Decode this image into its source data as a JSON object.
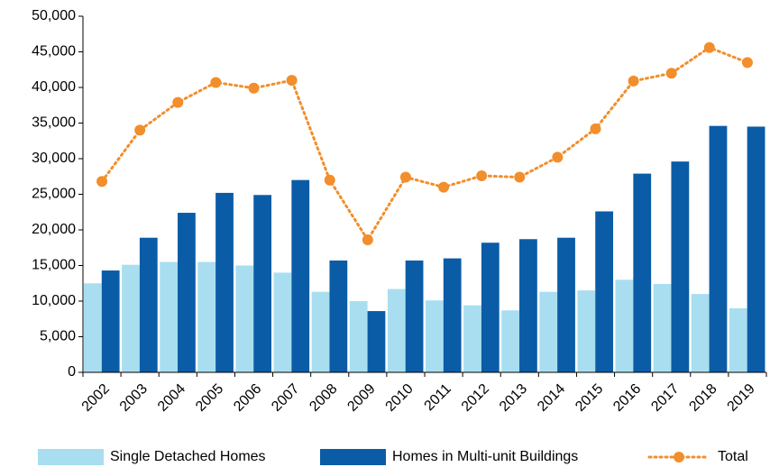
{
  "chart_data": {
    "type": "bar",
    "categories": [
      "2002",
      "2003",
      "2004",
      "2005",
      "2006",
      "2007",
      "2008",
      "2009",
      "2010",
      "2011",
      "2012",
      "2013",
      "2014",
      "2015",
      "2016",
      "2017",
      "2018",
      "2019"
    ],
    "series": [
      {
        "name": "Single Detached Homes",
        "color": "#a8def0",
        "values": [
          12500,
          15100,
          15500,
          15500,
          15000,
          14000,
          11300,
          10000,
          11700,
          10100,
          9400,
          8700,
          11300,
          11500,
          13000,
          12400,
          11000,
          9000
        ]
      },
      {
        "name": "Homes in Multi-unit Buildings",
        "color": "#0b5ca6",
        "values": [
          14300,
          18900,
          22400,
          25200,
          24900,
          27000,
          15700,
          8600,
          15700,
          16000,
          18200,
          18700,
          18900,
          22600,
          27900,
          29600,
          34600,
          34500
        ]
      },
      {
        "name": "Total",
        "type": "line",
        "color": "#f28e2b",
        "values": [
          26800,
          34000,
          37900,
          40700,
          39900,
          41000,
          27000,
          18600,
          27400,
          26000,
          27600,
          27400,
          30200,
          34200,
          40900,
          42000,
          45600,
          43500
        ]
      }
    ],
    "ylim": [
      0,
      50000
    ],
    "yticks": [
      0,
      {
        "value": 5000,
        "label": "5,000"
      },
      {
        "value": 10000,
        "label": "10,000"
      },
      {
        "value": 15000,
        "label": "15,000"
      },
      {
        "value": 20000,
        "label": "20,000"
      },
      {
        "value": 25000,
        "label": "25,000"
      },
      {
        "value": 30000,
        "label": "30,000"
      },
      {
        "value": 35000,
        "label": "35,000"
      },
      {
        "value": 40000,
        "label": "40,000"
      },
      {
        "value": 45000,
        "label": "45,000"
      },
      {
        "value": 50000,
        "label": "50,000"
      }
    ],
    "grid": false,
    "legend": "bottom"
  }
}
